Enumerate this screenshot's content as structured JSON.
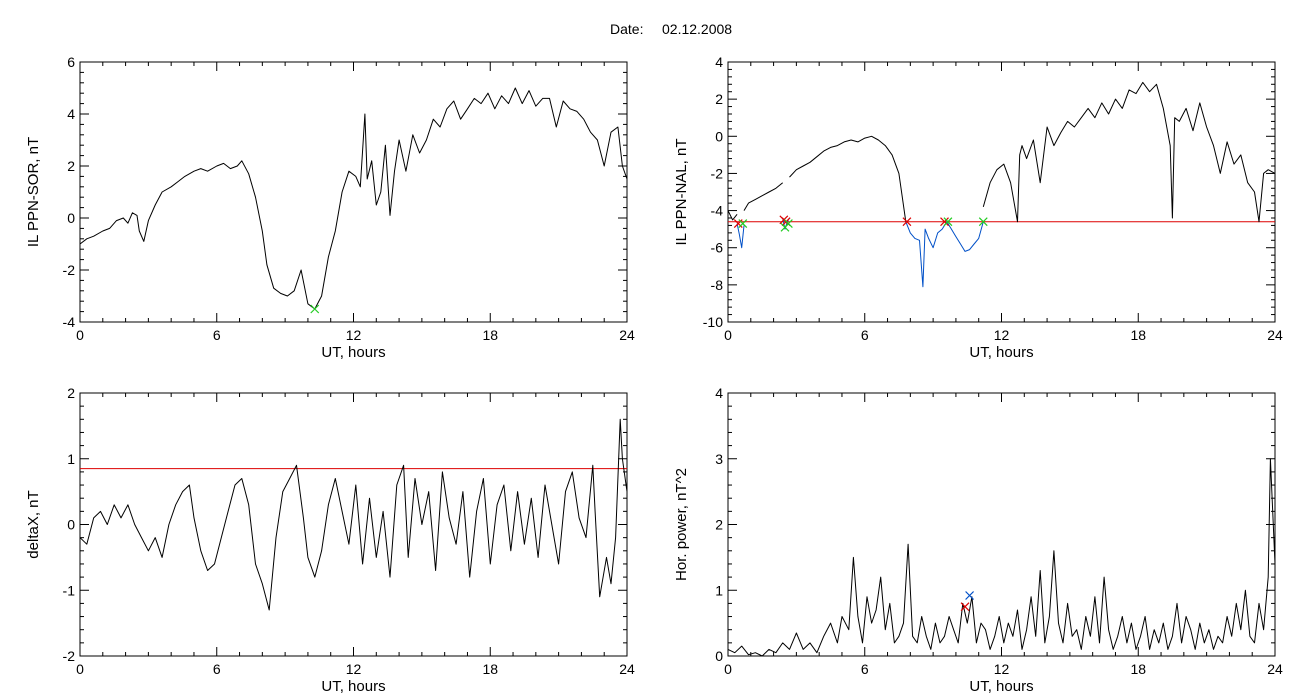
{
  "header": {
    "label": "Date:",
    "value": "02.12.2008"
  },
  "chart_data": [
    {
      "id": "p1",
      "type": "line",
      "title": "",
      "xlabel": "UT, hours",
      "ylabel": "IL PPN-SOR, nT",
      "xlim": [
        0,
        24
      ],
      "ylim": [
        -4,
        6
      ],
      "xticks": [
        0,
        6,
        12,
        18,
        24
      ],
      "yticks": [
        -4,
        -2,
        0,
        2,
        4,
        6
      ],
      "series": [
        {
          "color": "#000000",
          "x": [
            0,
            0.3,
            0.6,
            1.0,
            1.3,
            1.6,
            1.9,
            2.1,
            2.3,
            2.5,
            2.6,
            2.8,
            3.0,
            3.3,
            3.6,
            4.0,
            4.3,
            4.6,
            5.0,
            5.3,
            5.6,
            6.0,
            6.3,
            6.6,
            6.9,
            7.1,
            7.4,
            7.7,
            8.0,
            8.2,
            8.5,
            8.8,
            9.1,
            9.4,
            9.7,
            10.0,
            10.3,
            10.6,
            10.9,
            11.2,
            11.5,
            11.8,
            12.1,
            12.3,
            12.5,
            12.6,
            12.8,
            13.0,
            13.2,
            13.4,
            13.6,
            13.8,
            14.0,
            14.3,
            14.6,
            14.9,
            15.2,
            15.5,
            15.8,
            16.1,
            16.4,
            16.7,
            17.0,
            17.3,
            17.6,
            17.9,
            18.2,
            18.5,
            18.8,
            19.1,
            19.4,
            19.7,
            20.0,
            20.3,
            20.6,
            20.9,
            21.2,
            21.5,
            21.8,
            22.1,
            22.4,
            22.7,
            23.0,
            23.3,
            23.6,
            23.8,
            24.0
          ],
          "y": [
            -1.0,
            -0.8,
            -0.7,
            -0.5,
            -0.4,
            -0.1,
            0.0,
            -0.2,
            0.2,
            0.1,
            -0.5,
            -0.9,
            -0.1,
            0.5,
            1.0,
            1.2,
            1.4,
            1.6,
            1.8,
            1.9,
            1.8,
            2.0,
            2.1,
            1.9,
            2.0,
            2.2,
            1.7,
            0.8,
            -0.5,
            -1.8,
            -2.7,
            -2.9,
            -3.0,
            -2.8,
            -2.0,
            -3.3,
            -3.5,
            -3.0,
            -1.5,
            -0.5,
            1.0,
            1.8,
            1.6,
            1.2,
            4.0,
            1.5,
            2.2,
            0.5,
            1.0,
            2.8,
            0.1,
            1.8,
            3.0,
            1.8,
            3.2,
            2.5,
            3.0,
            3.8,
            3.5,
            4.2,
            4.5,
            3.8,
            4.2,
            4.6,
            4.4,
            4.8,
            4.2,
            4.7,
            4.4,
            5.0,
            4.4,
            4.9,
            4.3,
            4.6,
            4.6,
            3.5,
            4.5,
            4.2,
            4.1,
            3.8,
            3.3,
            3.0,
            2.0,
            3.3,
            3.5,
            2.0,
            1.5
          ]
        }
      ],
      "hlines": [],
      "markers": [
        {
          "x": 10.3,
          "y": -3.5,
          "color": "#22cc22"
        }
      ]
    },
    {
      "id": "p2",
      "type": "line",
      "title": "",
      "xlabel": "UT, hours",
      "ylabel": "IL PPN-NAL, nT",
      "xlim": [
        0,
        24
      ],
      "ylim": [
        -10,
        4
      ],
      "xticks": [
        0,
        6,
        12,
        18,
        24
      ],
      "yticks": [
        -10,
        -8,
        -6,
        -4,
        -2,
        0,
        2,
        4
      ],
      "series": [
        {
          "color": "#000000",
          "x": [
            0.0,
            0.2,
            0.4
          ],
          "y": [
            -4.0,
            -4.5,
            -4.2
          ]
        },
        {
          "color": "#0050c8",
          "x": [
            0.4,
            0.5,
            0.6,
            0.7
          ],
          "y": [
            -4.7,
            -5.3,
            -6.0,
            -4.8
          ]
        },
        {
          "color": "#000000",
          "x": [
            0.7,
            0.9,
            1.2,
            1.5,
            1.8,
            2.1,
            2.4
          ],
          "y": [
            -4.0,
            -3.6,
            -3.4,
            -3.2,
            -3.0,
            -2.8,
            -2.5
          ]
        },
        {
          "color": "#0050c8",
          "x": [
            2.4,
            2.5,
            2.6,
            2.7
          ],
          "y": [
            -4.4,
            -5.0,
            -4.6,
            -4.4
          ]
        },
        {
          "color": "#000000",
          "x": [
            2.7,
            3.0,
            3.3,
            3.6,
            3.9,
            4.2,
            4.5,
            4.8,
            5.1,
            5.4,
            5.7,
            6.0,
            6.3,
            6.6,
            6.9,
            7.2,
            7.5,
            7.8
          ],
          "y": [
            -2.2,
            -1.8,
            -1.6,
            -1.4,
            -1.1,
            -0.8,
            -0.6,
            -0.5,
            -0.3,
            -0.2,
            -0.3,
            -0.1,
            0.0,
            -0.2,
            -0.5,
            -1.0,
            -2.0,
            -4.6
          ]
        },
        {
          "color": "#0050c8",
          "x": [
            7.8,
            8.0,
            8.2,
            8.4,
            8.55,
            8.65,
            8.8,
            9.0,
            9.2,
            9.4,
            9.6,
            9.8,
            10.0,
            10.2,
            10.4,
            10.6,
            10.8,
            11.0,
            11.2
          ],
          "y": [
            -4.6,
            -5.2,
            -5.5,
            -5.6,
            -8.1,
            -5.0,
            -5.5,
            -6.0,
            -5.2,
            -5.0,
            -4.6,
            -5.0,
            -5.4,
            -5.8,
            -6.2,
            -6.1,
            -5.8,
            -5.5,
            -4.6
          ]
        },
        {
          "color": "#000000",
          "x": [
            11.2,
            11.5,
            11.8,
            12.1,
            12.4,
            12.7,
            12.8,
            12.9,
            13.1,
            13.4,
            13.7,
            14.0,
            14.3,
            14.6,
            14.9,
            15.2,
            15.5,
            15.8,
            16.1,
            16.4,
            16.7,
            17.0,
            17.3,
            17.6,
            17.9,
            18.2,
            18.5,
            18.8,
            19.1,
            19.4,
            19.5,
            19.6,
            19.8,
            20.1,
            20.4,
            20.7,
            21.0,
            21.3,
            21.6,
            21.9,
            22.2,
            22.5,
            22.8,
            23.1,
            23.3,
            23.5,
            23.7,
            24.0
          ],
          "y": [
            -3.8,
            -2.5,
            -1.8,
            -1.5,
            -2.5,
            -4.6,
            -1.0,
            -0.5,
            -1.2,
            -0.2,
            -2.5,
            0.5,
            -0.5,
            0.2,
            0.8,
            0.5,
            1.0,
            1.5,
            1.0,
            1.8,
            1.2,
            2.0,
            1.5,
            2.5,
            2.3,
            2.9,
            2.4,
            2.8,
            1.5,
            -0.5,
            -4.4,
            1.0,
            0.8,
            1.5,
            0.3,
            1.8,
            0.5,
            -0.5,
            -2.0,
            -0.3,
            -1.5,
            -1.0,
            -2.5,
            -3.0,
            -4.6,
            -2.0,
            -1.8,
            -2.0
          ]
        }
      ],
      "hlines": [
        {
          "y": -4.6,
          "color": "#dd0000"
        }
      ],
      "markers": [
        {
          "x": 0.45,
          "y": -4.7,
          "color": "#dd0000"
        },
        {
          "x": 0.65,
          "y": -4.7,
          "color": "#22cc22"
        },
        {
          "x": 2.45,
          "y": -4.5,
          "color": "#dd0000"
        },
        {
          "x": 2.55,
          "y": -4.6,
          "color": "#dd0000"
        },
        {
          "x": 2.5,
          "y": -4.9,
          "color": "#22cc22"
        },
        {
          "x": 2.65,
          "y": -4.7,
          "color": "#22cc22"
        },
        {
          "x": 7.85,
          "y": -4.6,
          "color": "#dd0000"
        },
        {
          "x": 9.5,
          "y": -4.6,
          "color": "#dd0000"
        },
        {
          "x": 9.65,
          "y": -4.6,
          "color": "#22cc22"
        },
        {
          "x": 11.2,
          "y": -4.6,
          "color": "#22cc22"
        }
      ]
    },
    {
      "id": "p3",
      "type": "line",
      "title": "",
      "xlabel": "UT, hours",
      "ylabel": "deltaX, nT",
      "xlim": [
        0,
        24
      ],
      "ylim": [
        -2,
        2
      ],
      "xticks": [
        0,
        6,
        12,
        18,
        24
      ],
      "yticks": [
        -2,
        -1,
        0,
        1,
        2
      ],
      "series": [
        {
          "color": "#000000",
          "x": [
            0,
            0.3,
            0.6,
            0.9,
            1.2,
            1.5,
            1.8,
            2.1,
            2.4,
            2.7,
            3.0,
            3.3,
            3.6,
            3.9,
            4.2,
            4.5,
            4.8,
            5.0,
            5.3,
            5.6,
            5.9,
            6.2,
            6.5,
            6.8,
            7.1,
            7.4,
            7.7,
            8.0,
            8.3,
            8.6,
            8.9,
            9.2,
            9.5,
            9.8,
            10.0,
            10.3,
            10.6,
            10.9,
            11.2,
            11.5,
            11.8,
            12.1,
            12.4,
            12.7,
            13.0,
            13.3,
            13.6,
            13.9,
            14.2,
            14.4,
            14.7,
            15.0,
            15.3,
            15.6,
            15.9,
            16.2,
            16.5,
            16.8,
            17.1,
            17.4,
            17.7,
            18.0,
            18.3,
            18.6,
            18.9,
            19.2,
            19.5,
            19.8,
            20.1,
            20.4,
            20.7,
            21.0,
            21.3,
            21.6,
            21.9,
            22.2,
            22.5,
            22.6,
            22.8,
            23.1,
            23.3,
            23.5,
            23.7,
            23.8,
            24.0
          ],
          "y": [
            -0.2,
            -0.3,
            0.1,
            0.2,
            0.0,
            0.3,
            0.1,
            0.3,
            0.0,
            -0.2,
            -0.4,
            -0.2,
            -0.5,
            0.0,
            0.3,
            0.5,
            0.6,
            0.1,
            -0.4,
            -0.7,
            -0.6,
            -0.2,
            0.2,
            0.6,
            0.7,
            0.3,
            -0.6,
            -0.9,
            -1.3,
            -0.2,
            0.5,
            0.7,
            0.9,
            0.1,
            -0.5,
            -0.8,
            -0.4,
            0.3,
            0.7,
            0.2,
            -0.3,
            0.6,
            -0.6,
            0.4,
            -0.5,
            0.2,
            -0.8,
            0.6,
            0.9,
            -0.5,
            0.7,
            0.0,
            0.5,
            -0.7,
            0.8,
            0.1,
            -0.3,
            0.5,
            -0.8,
            0.2,
            0.7,
            -0.6,
            0.3,
            0.6,
            -0.4,
            0.5,
            -0.3,
            0.4,
            -0.5,
            0.6,
            0.0,
            -0.6,
            0.5,
            0.8,
            0.1,
            -0.2,
            0.9,
            0.2,
            -1.1,
            -0.5,
            -0.9,
            -0.2,
            1.6,
            1.0,
            0.5
          ]
        }
      ],
      "hlines": [
        {
          "y": 0.85,
          "color": "#dd0000"
        }
      ],
      "markers": []
    },
    {
      "id": "p4",
      "type": "line",
      "title": "",
      "xlabel": "UT, hours",
      "ylabel": "Hor. power, nT^2",
      "xlim": [
        0,
        24
      ],
      "ylim": [
        0,
        4
      ],
      "xticks": [
        0,
        6,
        12,
        18,
        24
      ],
      "yticks": [
        0,
        1,
        2,
        3,
        4
      ],
      "series": [
        {
          "color": "#000000",
          "x": [
            0,
            0.3,
            0.6,
            0.9,
            1.2,
            1.5,
            1.8,
            2.1,
            2.4,
            2.7,
            3.0,
            3.3,
            3.6,
            3.9,
            4.2,
            4.5,
            4.8,
            5.0,
            5.3,
            5.5,
            5.7,
            5.9,
            6.1,
            6.3,
            6.5,
            6.7,
            6.9,
            7.1,
            7.3,
            7.5,
            7.7,
            7.9,
            8.1,
            8.3,
            8.5,
            8.7,
            8.9,
            9.1,
            9.3,
            9.5,
            9.7,
            9.9,
            10.1,
            10.3,
            10.5,
            10.7,
            10.9,
            11.1,
            11.3,
            11.5,
            11.7,
            11.9,
            12.1,
            12.3,
            12.5,
            12.7,
            12.9,
            13.1,
            13.3,
            13.5,
            13.7,
            13.9,
            14.1,
            14.3,
            14.5,
            14.7,
            14.9,
            15.1,
            15.3,
            15.5,
            15.7,
            15.9,
            16.1,
            16.3,
            16.5,
            16.7,
            16.9,
            17.1,
            17.3,
            17.5,
            17.7,
            17.9,
            18.1,
            18.3,
            18.5,
            18.7,
            18.9,
            19.1,
            19.3,
            19.5,
            19.7,
            19.9,
            20.1,
            20.3,
            20.5,
            20.7,
            20.9,
            21.1,
            21.3,
            21.5,
            21.7,
            21.9,
            22.1,
            22.3,
            22.5,
            22.7,
            22.9,
            23.1,
            23.3,
            23.5,
            23.7,
            23.8,
            24.0
          ],
          "y": [
            0.1,
            0.05,
            0.15,
            0.02,
            0.05,
            0.0,
            0.1,
            0.05,
            0.2,
            0.1,
            0.35,
            0.1,
            0.2,
            0.05,
            0.3,
            0.5,
            0.2,
            0.6,
            0.4,
            1.5,
            0.6,
            0.2,
            0.9,
            0.5,
            0.7,
            1.2,
            0.4,
            0.8,
            0.2,
            0.3,
            0.5,
            1.7,
            0.3,
            0.2,
            0.6,
            0.3,
            0.1,
            0.5,
            0.2,
            0.3,
            0.6,
            0.4,
            0.2,
            0.8,
            0.5,
            0.9,
            0.2,
            0.5,
            0.4,
            0.1,
            0.3,
            0.6,
            0.2,
            0.5,
            0.3,
            0.7,
            0.1,
            0.4,
            0.9,
            0.3,
            1.3,
            0.2,
            0.6,
            1.6,
            0.5,
            0.2,
            0.8,
            0.3,
            0.4,
            0.1,
            0.6,
            0.3,
            0.9,
            0.2,
            1.2,
            0.4,
            0.1,
            0.3,
            0.6,
            0.2,
            0.5,
            0.1,
            0.3,
            0.6,
            0.1,
            0.4,
            0.2,
            0.5,
            0.1,
            0.3,
            0.8,
            0.2,
            0.6,
            0.4,
            0.1,
            0.5,
            0.2,
            0.4,
            0.1,
            0.3,
            0.2,
            0.6,
            0.3,
            0.8,
            0.4,
            1.0,
            0.3,
            0.2,
            0.8,
            0.4,
            1.2,
            3.0,
            1.4
          ]
        }
      ],
      "hlines": [],
      "markers": [
        {
          "x": 10.4,
          "y": 0.75,
          "color": "#dd0000"
        },
        {
          "x": 10.6,
          "y": 0.92,
          "color": "#0050c8"
        }
      ]
    }
  ]
}
